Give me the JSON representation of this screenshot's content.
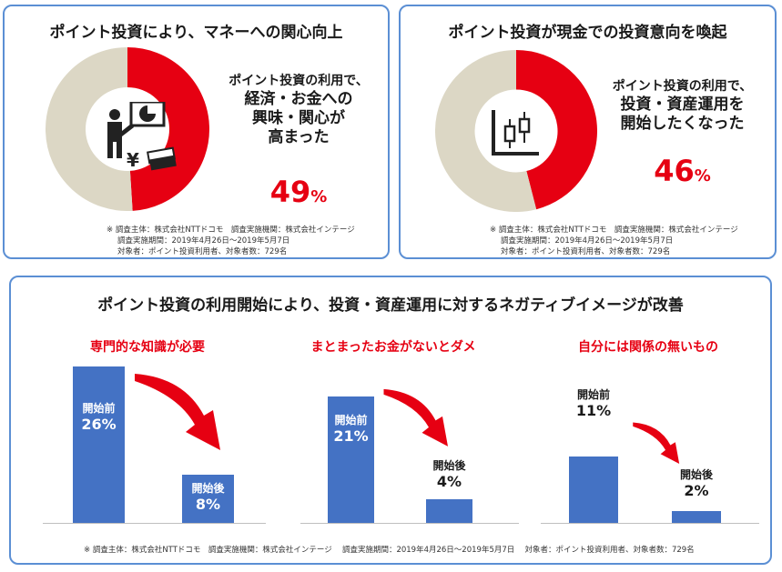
{
  "colors": {
    "accent": "#e60012",
    "donut_rest": "#dcd7c5",
    "bar": "#4472c4",
    "border": "#5b8fd4"
  },
  "panel1": {
    "title": "ポイント投資により、マネーへの関心向上",
    "label_sub": "ポイント投資の利用で、",
    "label_lines": [
      "経済・お金への",
      "興味・関心が",
      "高まった"
    ],
    "percent": "49",
    "unit": "%",
    "icons": [
      "presenter-chart-icon",
      "yen-icon",
      "money-icon"
    ],
    "note": [
      "※ 調査主体：株式会社NTTドコモ　調査実施機関：株式会社インテージ",
      "調査実施期間：2019年4月26日～2019年5月7日",
      "対象者：ポイント投資利用者、対象者数：729名"
    ]
  },
  "panel2": {
    "title": "ポイント投資が現金での投資意向を喚起",
    "label_sub": "ポイント投資の利用で、",
    "label_lines": [
      "投資・資産運用を",
      "開始したくなった"
    ],
    "percent": "46",
    "unit": "%",
    "icons": [
      "candlestick-chart-icon"
    ],
    "note": [
      "※ 調査主体：株式会社NTTドコモ　調査実施機関：株式会社インテージ",
      "調査実施期間：2019年4月26日～2019年5月7日",
      "対象者：ポイント投資利用者、対象者数：729名"
    ]
  },
  "panel3": {
    "title": "ポイント投資の利用開始により、投資・資産運用に対するネガティブイメージが改善",
    "note": "※ 調査主体：株式会社NTTドコモ　調査実施機関：株式会社インテージ　 調査実施期間：2019年4月26日～2019年5月7日　 対象者：ポイント投資利用者、対象者数：729名"
  },
  "chart_data": [
    {
      "type": "pie",
      "values": [
        49,
        51
      ],
      "labels": [
        "高まった",
        ""
      ],
      "colors": [
        "#e60012",
        "#dcd7c5"
      ]
    },
    {
      "type": "pie",
      "values": [
        46,
        54
      ],
      "labels": [
        "開始したくなった",
        ""
      ],
      "colors": [
        "#e60012",
        "#dcd7c5"
      ]
    },
    {
      "type": "bar",
      "title": "専門的な知識が必要",
      "categories": [
        "開始前",
        "開始後"
      ],
      "values": [
        26,
        8
      ],
      "value_labels": [
        "26%",
        "8%"
      ],
      "ylim": [
        0,
        26
      ]
    },
    {
      "type": "bar",
      "title": "まとまったお金がないとダメ",
      "categories": [
        "開始前",
        "開始後"
      ],
      "values": [
        21,
        4
      ],
      "value_labels": [
        "21%",
        "4%"
      ],
      "ylim": [
        0,
        26
      ]
    },
    {
      "type": "bar",
      "title": "自分には関係の無いもの",
      "categories": [
        "開始前",
        "開始後"
      ],
      "values": [
        11,
        2
      ],
      "value_labels": [
        "11%",
        "2%"
      ],
      "ylim": [
        0,
        26
      ]
    }
  ]
}
